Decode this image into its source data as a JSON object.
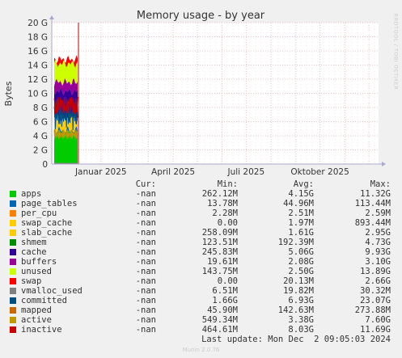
{
  "chart_data": {
    "type": "area",
    "title": "Memory usage - by year",
    "ylabel": "Bytes",
    "ylim": [
      0,
      20
    ],
    "yunit": "G",
    "yticks": [
      "0",
      "2 G",
      "4 G",
      "6 G",
      "8 G",
      "10 G",
      "12 G",
      "14 G",
      "16 G",
      "18 G",
      "20 G"
    ],
    "xticks": [
      {
        "label": "Januar 2025",
        "month": 1
      },
      {
        "label": "April 2025",
        "month": 4
      },
      {
        "label": "Juli 2025",
        "month": 7
      },
      {
        "label": "Oktober 2025",
        "month": 10
      }
    ],
    "grid": true,
    "stack_top_approx_G": 15.5,
    "series": [
      {
        "name": "apps",
        "color": "#00cc00",
        "cur": "-nan",
        "min": "262.12M",
        "avg": "4.15G",
        "max": "11.32G"
      },
      {
        "name": "page_tables",
        "color": "#0066b3",
        "cur": "-nan",
        "min": "13.78M",
        "avg": "44.96M",
        "max": "113.44M"
      },
      {
        "name": "per_cpu",
        "color": "#ff8000",
        "cur": "-nan",
        "min": "2.28M",
        "avg": "2.51M",
        "max": "2.59M"
      },
      {
        "name": "swap_cache",
        "color": "#ffcc00",
        "cur": "-nan",
        "min": "0.00",
        "avg": "1.97M",
        "max": "893.44M"
      },
      {
        "name": "slab_cache",
        "color": "#ffcc00",
        "cur": "-nan",
        "min": "258.09M",
        "avg": "1.61G",
        "max": "2.95G"
      },
      {
        "name": "shmem",
        "color": "#008f00",
        "cur": "-nan",
        "min": "123.51M",
        "avg": "192.39M",
        "max": "4.73G"
      },
      {
        "name": "cache",
        "color": "#330099",
        "cur": "-nan",
        "min": "245.83M",
        "avg": "5.06G",
        "max": "9.93G"
      },
      {
        "name": "buffers",
        "color": "#990099",
        "cur": "-nan",
        "min": "19.61M",
        "avg": "2.08G",
        "max": "3.10G"
      },
      {
        "name": "unused",
        "color": "#ccff00",
        "cur": "-nan",
        "min": "143.75M",
        "avg": "2.50G",
        "max": "13.89G"
      },
      {
        "name": "swap",
        "color": "#ff0000",
        "cur": "-nan",
        "min": "0.00",
        "avg": "20.13M",
        "max": "2.66G"
      },
      {
        "name": "vmalloc_used",
        "color": "#808080",
        "cur": "-nan",
        "min": "6.51M",
        "avg": "19.82M",
        "max": "30.32M"
      },
      {
        "name": "committed",
        "color": "#004d80",
        "cur": "-nan",
        "min": "1.66G",
        "avg": "6.93G",
        "max": "23.07G"
      },
      {
        "name": "mapped",
        "color": "#cc6600",
        "cur": "-nan",
        "min": "45.90M",
        "avg": "142.63M",
        "max": "273.88M"
      },
      {
        "name": "active",
        "color": "#bf9900",
        "cur": "-nan",
        "min": "549.34M",
        "avg": "3.38G",
        "max": "7.60G"
      },
      {
        "name": "inactive",
        "color": "#cc0000",
        "cur": "-nan",
        "min": "464.61M",
        "avg": "8.03G",
        "max": "11.69G"
      }
    ]
  },
  "legend_header": {
    "cur": "Cur:",
    "min": "Min:",
    "avg": "Avg:",
    "max": "Max:"
  },
  "footer": {
    "last_update": "Last update: Mon Dec  2 09:05:03 2024",
    "munin": "Munin 2.0.76",
    "side_label": "RRDTOOL / TOBI OETIKER"
  }
}
